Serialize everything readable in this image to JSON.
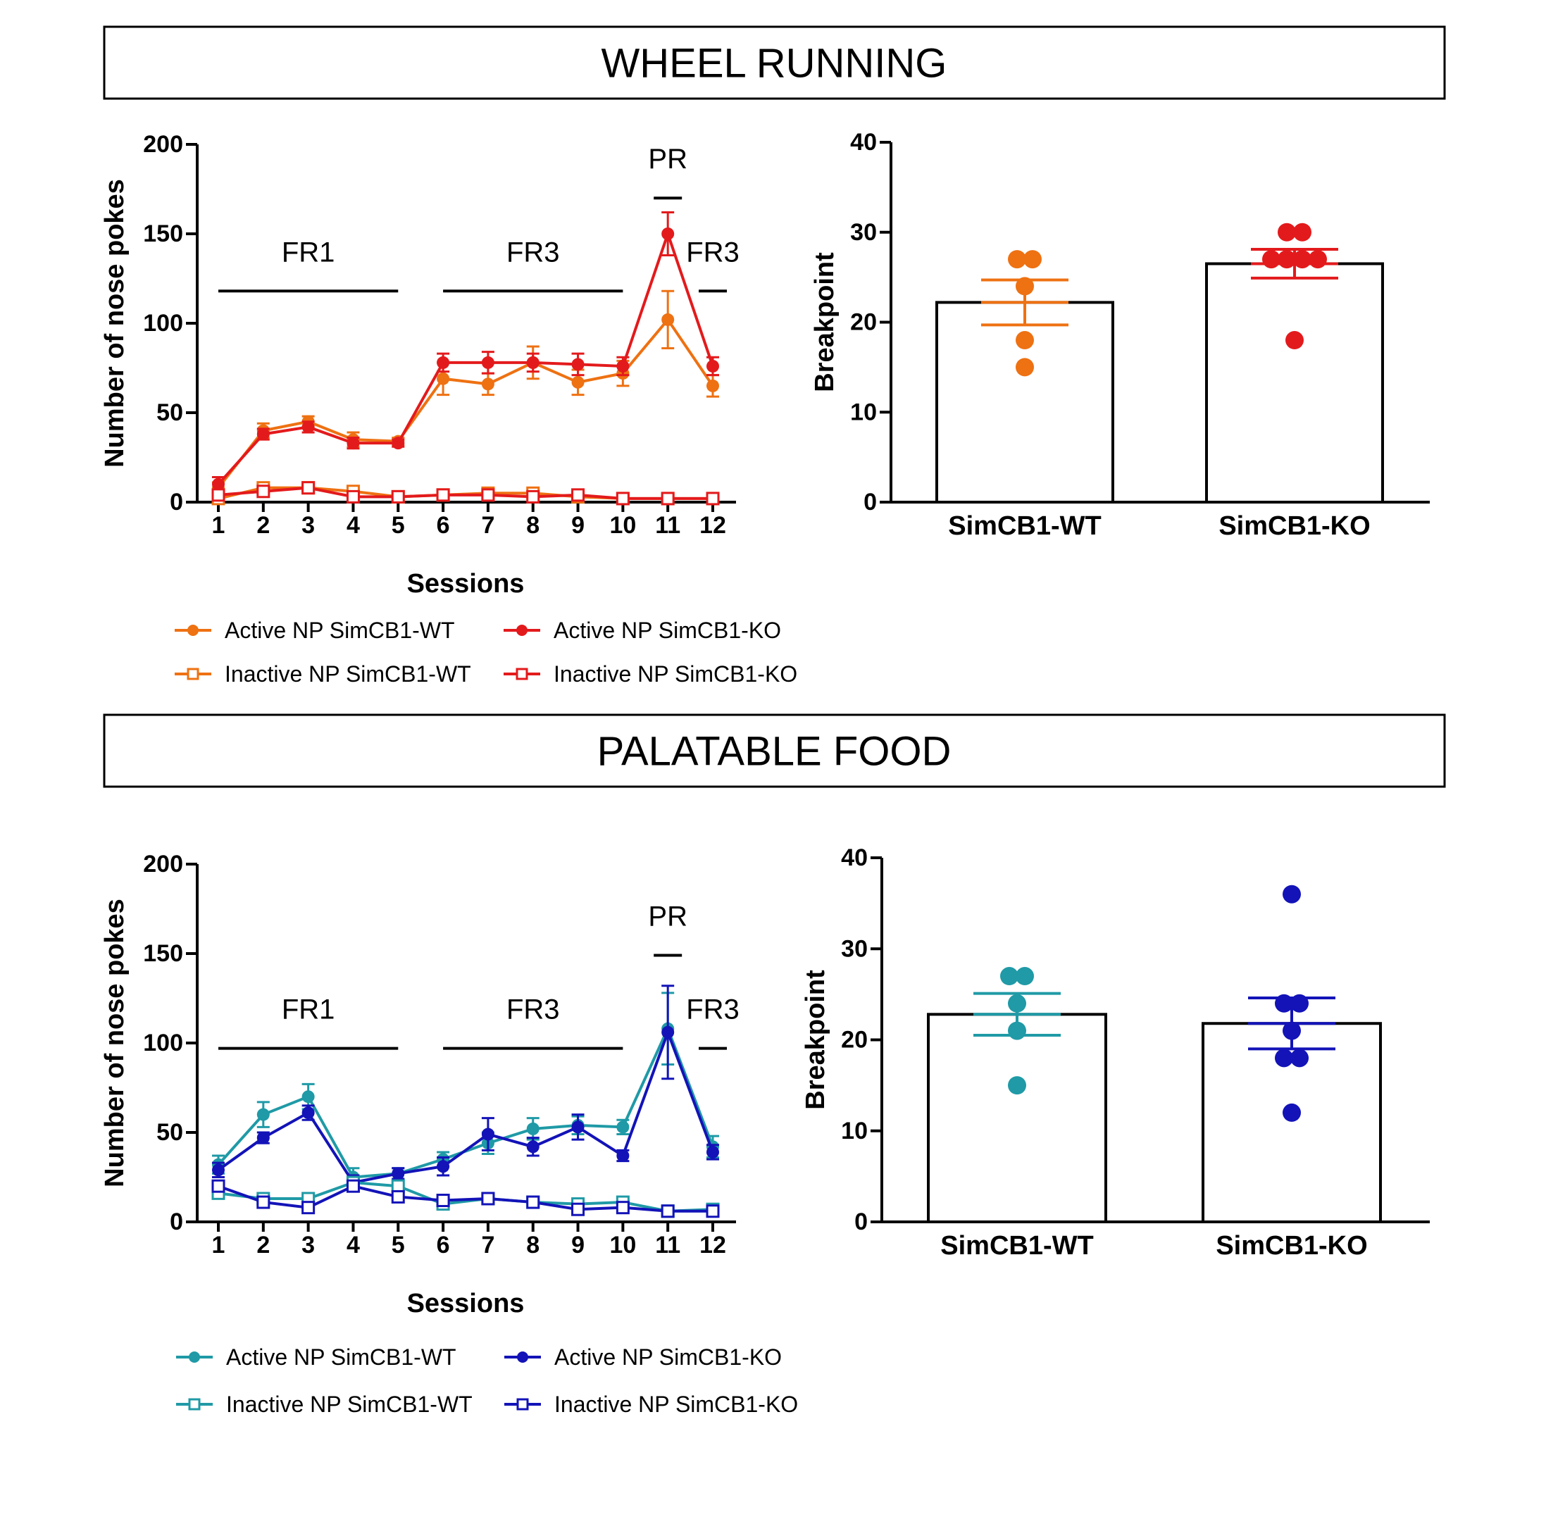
{
  "chart_data": [
    {
      "type": "line",
      "panel_title": "WHEEL RUNNING",
      "xlabel": "Sessions",
      "ylabel": "Number of nose pokes",
      "x": [
        1,
        2,
        3,
        4,
        5,
        6,
        7,
        8,
        9,
        10,
        11,
        12
      ],
      "ylim": [
        0,
        200
      ],
      "yticks": [
        0,
        50,
        100,
        150,
        200
      ],
      "phases": [
        {
          "label": "FR1",
          "from": 1,
          "to": 5,
          "y": 118
        },
        {
          "label": "FR3",
          "from": 6,
          "to": 10,
          "y": 118
        },
        {
          "label": "PR",
          "from": 11,
          "to": 11,
          "y": 170
        },
        {
          "label": "FR3",
          "from": 12,
          "to": 12,
          "y": 118
        }
      ],
      "series": [
        {
          "name": "Active NP SimCB1-WT",
          "color": "#EE7112",
          "marker": "circle",
          "values": [
            8,
            40,
            45,
            35,
            34,
            69,
            66,
            78,
            67,
            72,
            102,
            65
          ],
          "errors": [
            3,
            4,
            3,
            4,
            2,
            9,
            6,
            9,
            7,
            7,
            16,
            6
          ]
        },
        {
          "name": "Active NP SimCB1-KO",
          "color": "#E31A1C",
          "marker": "circle",
          "values": [
            10,
            38,
            42,
            33,
            33,
            78,
            78,
            78,
            77,
            76,
            150,
            76
          ],
          "errors": [
            4,
            3,
            3,
            3,
            2,
            5,
            6,
            5,
            6,
            5,
            12,
            5
          ]
        },
        {
          "name": "Inactive NP SimCB1-WT",
          "color": "#EE7112",
          "marker": "square",
          "values": [
            2,
            8,
            8,
            6,
            3,
            4,
            5,
            5,
            3,
            2,
            2,
            2
          ],
          "errors": [
            1,
            2,
            2,
            2,
            1,
            1,
            1,
            1,
            1,
            1,
            1,
            1
          ]
        },
        {
          "name": "Inactive NP SimCB1-KO",
          "color": "#E31A1C",
          "marker": "square",
          "values": [
            4,
            6,
            8,
            3,
            3,
            4,
            4,
            3,
            4,
            2,
            2,
            2
          ],
          "errors": [
            1,
            1,
            2,
            1,
            1,
            1,
            1,
            1,
            1,
            1,
            1,
            1
          ]
        }
      ]
    },
    {
      "type": "bar",
      "ylabel": "Breakpoint",
      "categories": [
        "SimCB1-WT",
        "SimCB1-KO"
      ],
      "values": [
        22.2,
        26.5
      ],
      "errors": [
        2.5,
        1.6
      ],
      "ylim": [
        0,
        40
      ],
      "yticks": [
        0,
        10,
        20,
        30,
        40
      ],
      "colors": [
        "#EE7112",
        "#E31A1C"
      ],
      "points": [
        [
          27,
          27,
          24,
          18,
          15
        ],
        [
          30,
          30,
          27,
          27,
          27,
          27,
          18
        ]
      ]
    },
    {
      "type": "line",
      "panel_title": "PALATABLE FOOD",
      "xlabel": "Sessions",
      "ylabel": "Number of nose pokes",
      "x": [
        1,
        2,
        3,
        4,
        5,
        6,
        7,
        8,
        9,
        10,
        11,
        12
      ],
      "ylim": [
        0,
        200
      ],
      "yticks": [
        0,
        50,
        100,
        150,
        200
      ],
      "phases": [
        {
          "label": "FR1",
          "from": 1,
          "to": 5,
          "y": 97
        },
        {
          "label": "FR3",
          "from": 6,
          "to": 10,
          "y": 97
        },
        {
          "label": "PR",
          "from": 11,
          "to": 11,
          "y": 149
        },
        {
          "label": "FR3",
          "from": 12,
          "to": 12,
          "y": 97
        }
      ],
      "series": [
        {
          "name": "Active NP SimCB1-WT",
          "color": "#1F9AA6",
          "marker": "circle",
          "values": [
            32,
            60,
            70,
            25,
            27,
            35,
            44,
            52,
            54,
            53,
            108,
            42
          ],
          "errors": [
            5,
            7,
            7,
            5,
            3,
            4,
            6,
            6,
            5,
            4,
            20,
            6
          ]
        },
        {
          "name": "Active NP SimCB1-KO",
          "color": "#1313B8",
          "marker": "circle",
          "values": [
            29,
            47,
            61,
            22,
            27,
            31,
            49,
            42,
            53,
            37,
            106,
            39
          ],
          "errors": [
            4,
            3,
            4,
            4,
            3,
            5,
            9,
            5,
            7,
            3,
            26,
            4
          ]
        },
        {
          "name": "Inactive NP SimCB1-WT",
          "color": "#1F9AA6",
          "marker": "square",
          "values": [
            16,
            13,
            13,
            22,
            20,
            10,
            13,
            11,
            10,
            11,
            6,
            7
          ],
          "errors": [
            3,
            2,
            2,
            3,
            3,
            2,
            2,
            2,
            2,
            2,
            1,
            1
          ]
        },
        {
          "name": "Inactive NP SimCB1-KO",
          "color": "#1313B8",
          "marker": "square",
          "values": [
            20,
            11,
            8,
            20,
            14,
            12,
            13,
            11,
            7,
            8,
            6,
            6
          ],
          "errors": [
            3,
            2,
            2,
            3,
            2,
            2,
            2,
            2,
            2,
            2,
            1,
            1
          ]
        }
      ]
    },
    {
      "type": "bar",
      "ylabel": "Breakpoint",
      "categories": [
        "SimCB1-WT",
        "SimCB1-KO"
      ],
      "values": [
        22.8,
        21.8
      ],
      "errors": [
        2.3,
        2.8
      ],
      "ylim": [
        0,
        40
      ],
      "yticks": [
        0,
        10,
        20,
        30,
        40
      ],
      "colors": [
        "#1F9AA6",
        "#1313B8"
      ],
      "points": [
        [
          27,
          27,
          24,
          21,
          15
        ],
        [
          36,
          24,
          24,
          21,
          18,
          18,
          12
        ]
      ]
    }
  ]
}
